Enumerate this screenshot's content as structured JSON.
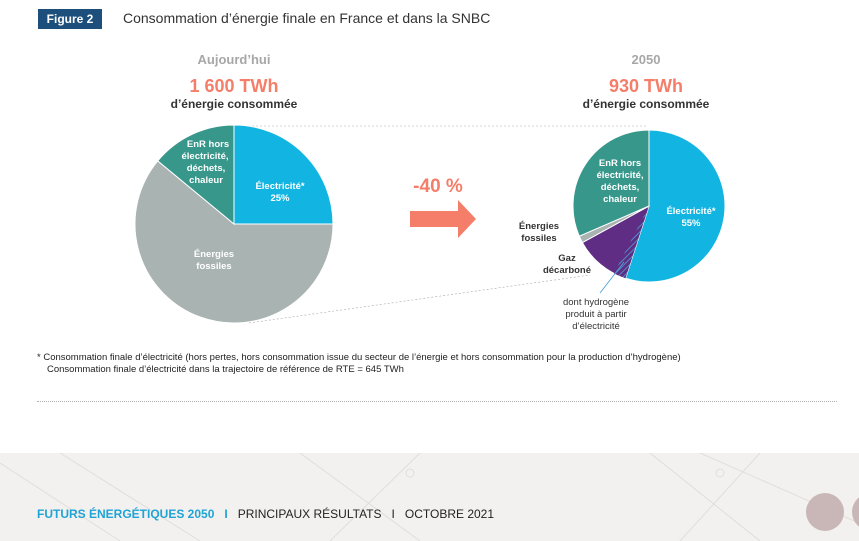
{
  "figure": {
    "badge": "Figure 2",
    "title": "Consommation d’énergie finale en France et dans la SNBC"
  },
  "chart_data": {
    "type": "pie",
    "reduction_label": "-40 %",
    "charts": [
      {
        "heading": "Aujourd’hui",
        "total": "1 600 TWh",
        "total_caption": "d’énergie consommée",
        "slices": [
          {
            "name": "Électricité*",
            "pct_label": "25%",
            "value": 25,
            "color": "#12b5e1"
          },
          {
            "name": "Énergies fossiles",
            "pct_label": "",
            "value": 61,
            "color": "#a9b3b2"
          },
          {
            "name": "EnR hors électricité, déchets, chaleur",
            "pct_label": "",
            "value": 14,
            "color": "#37978a"
          }
        ]
      },
      {
        "heading": "2050",
        "total": "930 TWh",
        "total_caption": "d’énergie consommée",
        "slices": [
          {
            "name": "Électricité*",
            "pct_label": "55%",
            "value": 55,
            "color": "#12b5e1"
          },
          {
            "name": "Gaz décarboné",
            "pct_label": "",
            "value": 12,
            "color": "#5f2d83"
          },
          {
            "name": "Énergies fossiles",
            "pct_label": "",
            "value": 1.5,
            "color": "#a9b3b2"
          },
          {
            "name": "EnR hors électricité, déchets, chaleur",
            "pct_label": "",
            "value": 31.5,
            "color": "#37978a"
          }
        ],
        "annotation": "dont hydrogène produit à partir d’électricité"
      }
    ]
  },
  "labels": {
    "elec_today": "Électricité*",
    "elec_today_pct": "25%",
    "fossil_today_1": "Énergies",
    "fossil_today_2": "fossiles",
    "enr_today_1": "EnR hors",
    "enr_today_2": "électricité,",
    "enr_today_3": "déchets,",
    "enr_today_4": "chaleur",
    "elec_2050": "Électricité*",
    "elec_2050_pct": "55%",
    "enr_2050_1": "EnR hors",
    "enr_2050_2": "électricité,",
    "enr_2050_3": "déchets,",
    "enr_2050_4": "chaleur",
    "fossil_2050_1": "Énergies",
    "fossil_2050_2": "fossiles",
    "gaz_2050_1": "Gaz",
    "gaz_2050_2": "décarboné",
    "h2_1": "dont hydrogène",
    "h2_2": "produit à partir",
    "h2_3": "d’électricité"
  },
  "footnote": {
    "line1": "* Consommation finale d’électricité (hors pertes, hors consommation issue du secteur de l’énergie et hors consommation pour la production d’hydrogène)",
    "line2": "Consommation finale d’électricité dans la trajectoire de référence de RTE = 645 TWh"
  },
  "footer": {
    "brand": "FUTURS ÉNERGÉTIQUES 2050",
    "sep": "I",
    "section": "PRINCIPAUX RÉSULTATS",
    "date": "OCTOBRE 2021"
  },
  "colors": {
    "accent_salmon": "#f47e69",
    "badge_blue": "#1d4f7c",
    "brand_blue": "#1fa4d6"
  }
}
